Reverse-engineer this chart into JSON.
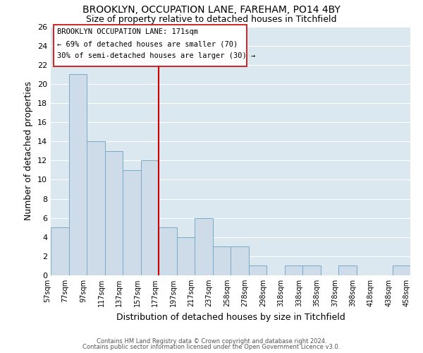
{
  "title": "BROOKLYN, OCCUPATION LANE, FAREHAM, PO14 4BY",
  "subtitle": "Size of property relative to detached houses in Titchfield",
  "xlabel": "Distribution of detached houses by size in Titchfield",
  "ylabel": "Number of detached properties",
  "footnote1": "Contains HM Land Registry data © Crown copyright and database right 2024.",
  "footnote2": "Contains public sector information licensed under the Open Government Licence v3.0.",
  "bin_labels": [
    "57sqm",
    "77sqm",
    "97sqm",
    "117sqm",
    "137sqm",
    "157sqm",
    "177sqm",
    "197sqm",
    "217sqm",
    "237sqm",
    "258sqm",
    "278sqm",
    "298sqm",
    "318sqm",
    "338sqm",
    "358sqm",
    "378sqm",
    "398sqm",
    "418sqm",
    "438sqm",
    "458sqm"
  ],
  "bar_values": [
    5,
    21,
    14,
    13,
    11,
    12,
    5,
    4,
    6,
    3,
    3,
    1,
    0,
    1,
    1,
    0,
    1,
    0,
    0,
    1
  ],
  "bar_color": "#cddce8",
  "bar_edgecolor": "#7aaac8",
  "highlight_line_color": "#cc0000",
  "annotation_title": "BROOKLYN OCCUPATION LANE: 171sqm",
  "annotation_line1": "← 69% of detached houses are smaller (70)",
  "annotation_line2": "30% of semi-detached houses are larger (30) →",
  "ylim": [
    0,
    26
  ],
  "yticks": [
    0,
    2,
    4,
    6,
    8,
    10,
    12,
    14,
    16,
    18,
    20,
    22,
    24,
    26
  ],
  "bg_color": "#dce8f0",
  "grid_color": "#ffffff",
  "title_fontsize": 10,
  "subtitle_fontsize": 9
}
